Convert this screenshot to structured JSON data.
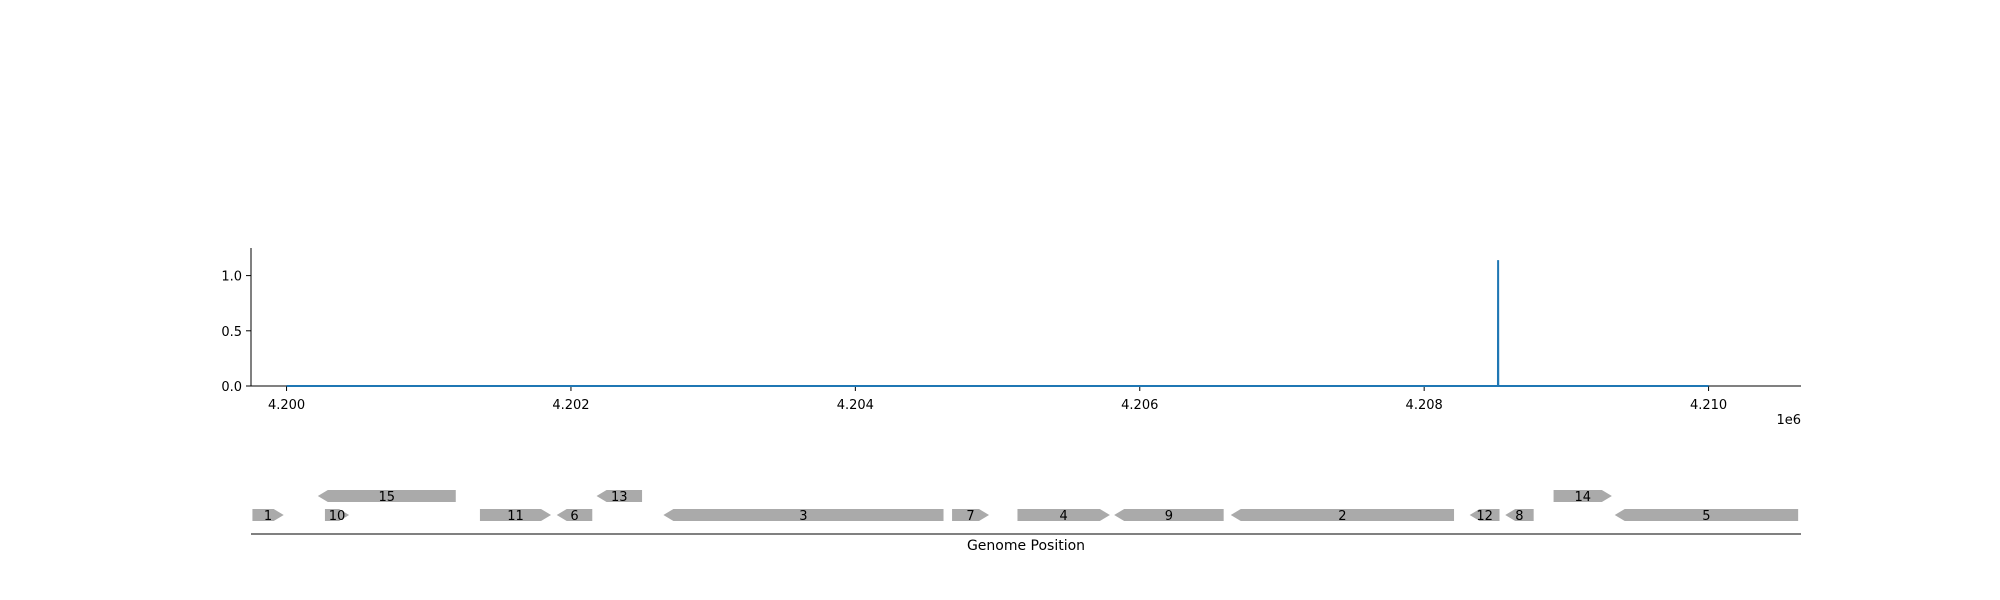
{
  "chart_data": {
    "type": "line",
    "title": "",
    "ylabel": "",
    "xlabel": "Genome Position",
    "x_offset_label": "1e6",
    "xlim": [
      4199750,
      4210650
    ],
    "ylim": [
      0,
      1.25
    ],
    "x_ticks": [
      4200000,
      4202000,
      4204000,
      4206000,
      4208000,
      4210000
    ],
    "x_tick_labels": [
      "4.200",
      "4.202",
      "4.204",
      "4.206",
      "4.208",
      "4.210"
    ],
    "y_ticks": [
      0,
      0.5,
      1.0
    ],
    "y_tick_labels": [
      "0.0",
      "0.5",
      "1.0"
    ],
    "line_color": "#1f77b4",
    "series": [
      {
        "x": [
          4200000,
          4208519,
          4208520,
          4208521,
          4210000
        ],
        "y": [
          0,
          0,
          1.14,
          0,
          0
        ]
      }
    ],
    "genes": {
      "color": "#aaaaaa",
      "items": [
        {
          "label": "1",
          "start": 4199760,
          "end": 4199980,
          "strand": "+",
          "row": 0
        },
        {
          "label": "10",
          "start": 4200270,
          "end": 4200440,
          "strand": "+",
          "row": 0
        },
        {
          "label": "15",
          "start": 4200220,
          "end": 4201190,
          "strand": "-",
          "row": 1
        },
        {
          "label": "11",
          "start": 4201360,
          "end": 4201860,
          "strand": "+",
          "row": 0
        },
        {
          "label": "6",
          "start": 4201900,
          "end": 4202150,
          "strand": "-",
          "row": 0
        },
        {
          "label": "13",
          "start": 4202180,
          "end": 4202500,
          "strand": "-",
          "row": 1
        },
        {
          "label": "3",
          "start": 4202650,
          "end": 4204620,
          "strand": "-",
          "row": 0
        },
        {
          "label": "7",
          "start": 4204680,
          "end": 4204940,
          "strand": "+",
          "row": 0
        },
        {
          "label": "4",
          "start": 4205140,
          "end": 4205790,
          "strand": "+",
          "row": 0
        },
        {
          "label": "9",
          "start": 4205820,
          "end": 4206590,
          "strand": "-",
          "row": 0
        },
        {
          "label": "2",
          "start": 4206640,
          "end": 4208210,
          "strand": "-",
          "row": 0
        },
        {
          "label": "12",
          "start": 4208320,
          "end": 4208530,
          "strand": "-",
          "row": 0
        },
        {
          "label": "8",
          "start": 4208570,
          "end": 4208770,
          "strand": "-",
          "row": 0
        },
        {
          "label": "14",
          "start": 4208910,
          "end": 4209320,
          "strand": "+",
          "row": 1
        },
        {
          "label": "5",
          "start": 4209340,
          "end": 4210630,
          "strand": "-",
          "row": 0
        }
      ]
    }
  }
}
